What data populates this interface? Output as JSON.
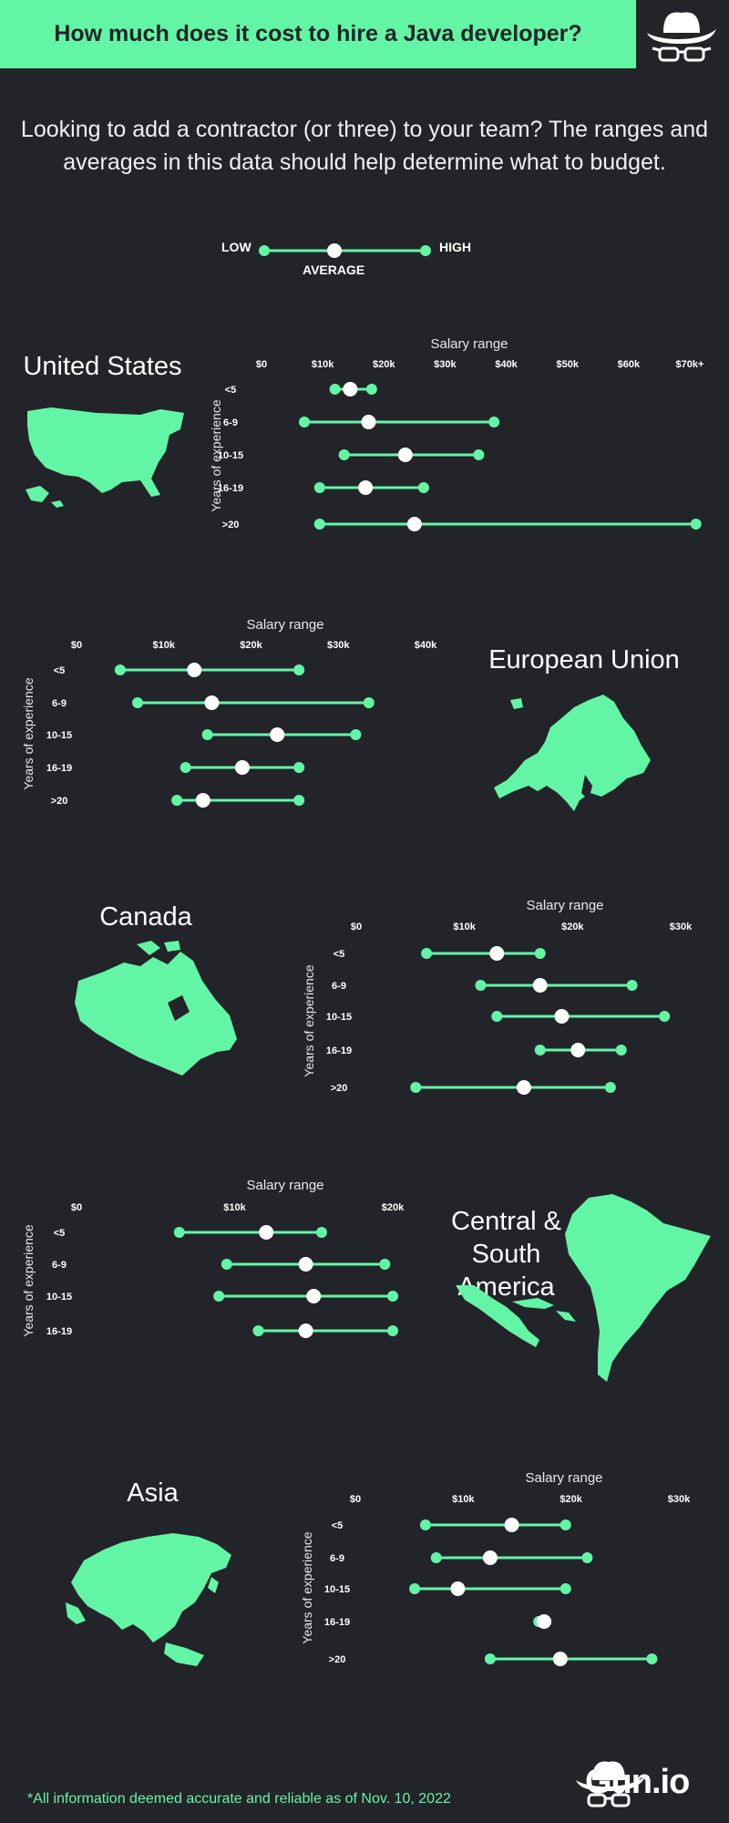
{
  "header": {
    "title": "How much does it cost to hire a Java developer?"
  },
  "intro": {
    "text": "Looking to add a contractor (or three) to your team? The ranges and averages in this data should help determine what to budget."
  },
  "legend": {
    "low": "LOW",
    "average": "AVERAGE",
    "high": "HIGH"
  },
  "colors": {
    "accent": "#63f5a6",
    "background": "#232429",
    "dot": "#ffffff"
  },
  "regions": [
    {
      "key": "us",
      "title": "United States",
      "map_icon": "usa-map-icon"
    },
    {
      "key": "eu",
      "title": "European Union",
      "map_icon": "europe-map-icon"
    },
    {
      "key": "ca",
      "title": "Canada",
      "map_icon": "canada-map-icon"
    },
    {
      "key": "csa",
      "title": "Central & South\nAmerica",
      "map_icon": "south-america-map-icon"
    },
    {
      "key": "asia",
      "title": "Asia",
      "map_icon": "asia-map-icon"
    }
  ],
  "chart_data": [
    {
      "type": "range",
      "region": "United States",
      "title": "Salary range",
      "ylabel": "Years of experience",
      "ticks": [
        0,
        10000,
        20000,
        30000,
        40000,
        50000,
        60000,
        70000
      ],
      "tick_labels": [
        "$0",
        "$10k",
        "$20k",
        "$30k",
        "$40k",
        "$50k",
        "$60k",
        "$70k+"
      ],
      "categories": [
        "<5",
        "6-9",
        "10-15",
        "16-19",
        ">20"
      ],
      "low": [
        12000,
        7000,
        13500,
        9500,
        9500
      ],
      "average": [
        14500,
        17500,
        23500,
        17000,
        25000
      ],
      "high": [
        18000,
        38000,
        35500,
        26500,
        71000
      ]
    },
    {
      "type": "range",
      "region": "European Union",
      "title": "Salary range",
      "ylabel": "Years of experience",
      "ticks": [
        0,
        10000,
        20000,
        30000,
        40000
      ],
      "tick_labels": [
        "$0",
        "$10k",
        "$20k",
        "$30k",
        "$40k"
      ],
      "categories": [
        "<5",
        "6-9",
        "10-15",
        "16-19",
        ">20"
      ],
      "low": [
        5000,
        7000,
        15000,
        12500,
        11500
      ],
      "average": [
        13500,
        15500,
        23000,
        19000,
        14500
      ],
      "high": [
        25500,
        33500,
        32000,
        25500,
        25500
      ]
    },
    {
      "type": "range",
      "region": "Canada",
      "title": "Salary range",
      "ylabel": "Years of experience",
      "ticks": [
        0,
        10000,
        20000,
        30000
      ],
      "tick_labels": [
        "$0",
        "$10k",
        "$20k",
        "$30k"
      ],
      "categories": [
        "<5",
        "6-9",
        "10-15",
        "16-19",
        ">20"
      ],
      "low": [
        6500,
        11500,
        13000,
        17000,
        5500
      ],
      "average": [
        13000,
        17000,
        19000,
        20500,
        15500
      ],
      "high": [
        17000,
        25500,
        28500,
        24500,
        23500
      ]
    },
    {
      "type": "range",
      "region": "Central & South America",
      "title": "Salary range",
      "ylabel": "Years of experience",
      "ticks": [
        0,
        10000,
        20000
      ],
      "tick_labels": [
        "$0",
        "$10k",
        "$20k"
      ],
      "categories": [
        "<5",
        "6-9",
        "10-15",
        "16-19"
      ],
      "low": [
        6500,
        9500,
        9000,
        11500
      ],
      "average": [
        12000,
        14500,
        15000,
        14500
      ],
      "high": [
        15500,
        19500,
        21000,
        21000
      ]
    },
    {
      "type": "range",
      "region": "Asia",
      "title": "Salary range",
      "ylabel": "Years of experience",
      "ticks": [
        0,
        10000,
        20000,
        30000
      ],
      "tick_labels": [
        "$0",
        "$10k",
        "$20k",
        "$30k"
      ],
      "categories": [
        "<5",
        "6-9",
        "10-15",
        "16-19",
        ">20"
      ],
      "low": [
        6500,
        7500,
        5500,
        17000,
        12500
      ],
      "average": [
        14500,
        12500,
        9500,
        17500,
        19000
      ],
      "high": [
        19500,
        21500,
        19500,
        17500,
        27500
      ]
    }
  ],
  "footer": {
    "note": "*All information deemed accurate and reliable as of Nov. 10, 2022",
    "brand": "Gun.io"
  }
}
